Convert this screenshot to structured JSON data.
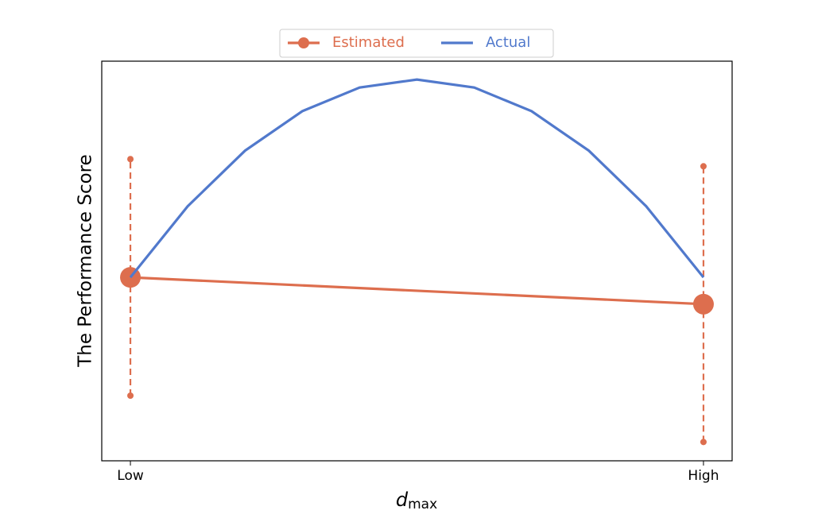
{
  "chart_data": {
    "type": "line",
    "xlabel": "d",
    "xlabel_subscript": "max",
    "ylabel": "The Performance Score",
    "xlim": [
      -0.05,
      1.05
    ],
    "xticks": [
      {
        "value": 0,
        "label": "Low"
      },
      {
        "value": 1,
        "label": "High"
      }
    ],
    "ylim": [
      0,
      1
    ],
    "legend": "upper center",
    "series": [
      {
        "name": "Estimated",
        "color": "#dd6e4e",
        "marker": "o",
        "x": [
          0,
          1
        ],
        "values": [
          0.459,
          0.392
        ],
        "errors": [
          0.296,
          0.345
        ]
      },
      {
        "name": "Actual",
        "color": "#5179cc",
        "x": [
          0,
          0.1,
          0.2,
          0.3,
          0.4,
          0.5,
          0.6,
          0.7,
          0.8,
          0.9,
          1
        ],
        "values": [
          0.459,
          0.637,
          0.776,
          0.875,
          0.934,
          0.954,
          0.934,
          0.875,
          0.776,
          0.637,
          0.459
        ]
      }
    ]
  }
}
